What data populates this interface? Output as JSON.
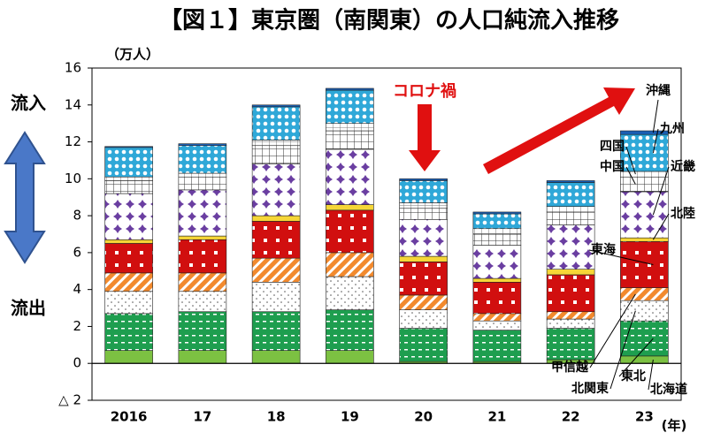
{
  "chart_data": {
    "type": "stacked_bar",
    "title": "【図１】東京圏（南関東）の人口純流入推移",
    "y_unit_label": "（万人）",
    "x_unit_label": "(年)",
    "annotations": {
      "inflow": "流入",
      "outflow": "流出",
      "covid": "コロナ禍"
    },
    "categories": [
      "2016",
      "17",
      "18",
      "19",
      "20",
      "21",
      "22",
      "23"
    ],
    "ylim": [
      -2,
      16
    ],
    "yticks": [
      {
        "value": -2,
        "label": "△ 2"
      },
      0,
      2,
      4,
      6,
      8,
      10,
      12,
      14,
      16
    ],
    "series": [
      {
        "name": "北海道",
        "color": "#7cc142",
        "values": [
          0.7,
          0.7,
          0.7,
          0.7,
          0.1,
          0.1,
          0.2,
          0.4
        ]
      },
      {
        "name": "東北",
        "color": "#1e9e4f",
        "values": [
          2.0,
          2.1,
          2.1,
          2.2,
          1.8,
          1.7,
          1.7,
          1.9
        ]
      },
      {
        "name": "北関東",
        "color": "#555555",
        "values": [
          1.2,
          1.1,
          1.6,
          1.8,
          1.0,
          0.5,
          0.5,
          1.1
        ]
      },
      {
        "name": "甲信越",
        "color": "#f28a2e",
        "values": [
          1.0,
          1.0,
          1.3,
          1.3,
          0.8,
          0.4,
          0.4,
          0.7
        ]
      },
      {
        "name": "東海",
        "color": "#d10f0f",
        "values": [
          1.6,
          1.8,
          2.0,
          2.3,
          1.8,
          1.7,
          2.0,
          2.5
        ]
      },
      {
        "name": "北陸",
        "color": "#f6d637",
        "values": [
          0.2,
          0.2,
          0.3,
          0.3,
          0.3,
          0.2,
          0.3,
          0.2
        ]
      },
      {
        "name": "近畿",
        "color": "#6a3ea1",
        "values": [
          2.5,
          2.5,
          2.8,
          3.0,
          2.0,
          1.8,
          2.4,
          2.5
        ]
      },
      {
        "name": "中国",
        "color": "#333333",
        "values": [
          0.7,
          0.7,
          1.0,
          1.0,
          0.6,
          0.6,
          0.7,
          0.8
        ]
      },
      {
        "name": "四国",
        "color": "#777777",
        "values": [
          0.2,
          0.2,
          0.3,
          0.4,
          0.3,
          0.3,
          0.3,
          0.3
        ]
      },
      {
        "name": "九州",
        "color": "#2fa8d8",
        "values": [
          1.6,
          1.5,
          1.8,
          1.8,
          1.2,
          0.8,
          1.3,
          2.0
        ]
      },
      {
        "name": "沖縄",
        "color": "#1a5fb4",
        "values": [
          0.05,
          0.1,
          0.1,
          0.1,
          0.1,
          0.1,
          0.1,
          0.2
        ]
      }
    ]
  }
}
